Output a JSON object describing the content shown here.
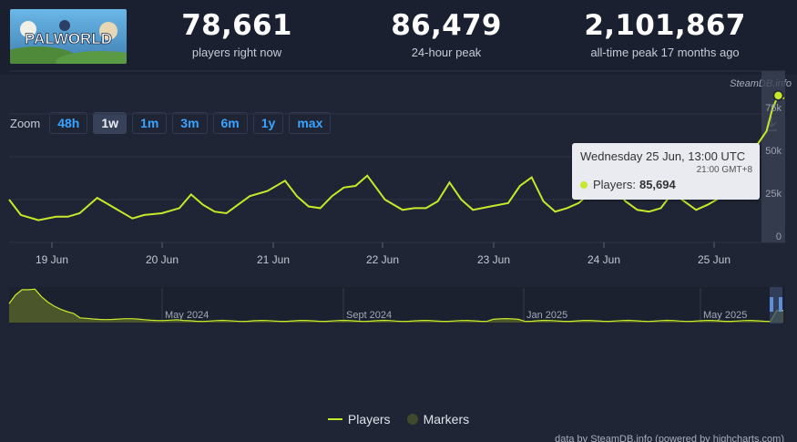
{
  "header": {
    "logo_text": "PALWORLD",
    "stats": [
      {
        "value": "78,661",
        "label": "players right now"
      },
      {
        "value": "86,479",
        "label": "24-hour peak"
      },
      {
        "value": "2,101,867",
        "label": "all-time peak 17 months ago"
      }
    ]
  },
  "credit_top": "SteamDB.info",
  "zoom": {
    "label": "Zoom",
    "buttons": [
      "48h",
      "1w",
      "1m",
      "3m",
      "6m",
      "1y",
      "max"
    ],
    "active": "1w"
  },
  "tooltip": {
    "date": "Wednesday 25 Jun, 13:00 UTC",
    "local_time": "21:00 GMT+8",
    "series": "Players:",
    "value": "85,694"
  },
  "legend": {
    "players": "Players",
    "markers": "Markers"
  },
  "credit_bottom": "data by SteamDB.info (powered by highcharts.com)",
  "colors": {
    "series": "#c7e92a",
    "background": "#1f2535",
    "button_text": "#3aa3ff"
  },
  "chart_data": {
    "type": "line",
    "title": "",
    "x_ticks": [
      "19 Jun",
      "20 Jun",
      "21 Jun",
      "22 Jun",
      "23 Jun",
      "24 Jun",
      "25 Jun"
    ],
    "y_ticks": [
      "0",
      "25k",
      "50k",
      "75k"
    ],
    "ylim": [
      0,
      100000
    ],
    "series": [
      {
        "name": "Players",
        "x_days": [
          0.0,
          0.1,
          0.25,
          0.4,
          0.5,
          0.6,
          0.75,
          0.85,
          0.95,
          1.05,
          1.15,
          1.3,
          1.45,
          1.55,
          1.65,
          1.75,
          1.85,
          1.95,
          2.05,
          2.2,
          2.35,
          2.45,
          2.55,
          2.65,
          2.75,
          2.85,
          2.95,
          3.05,
          3.2,
          3.35,
          3.45,
          3.55,
          3.65,
          3.75,
          3.85,
          3.95,
          4.1,
          4.25,
          4.35,
          4.45,
          4.55,
          4.65,
          4.75,
          4.85,
          4.95,
          5.1,
          5.25,
          5.35,
          5.45,
          5.55,
          5.65,
          5.75,
          5.85,
          5.95,
          6.05,
          6.15,
          6.25,
          6.35,
          6.45,
          6.5,
          6.55,
          6.6
        ],
        "values": [
          25000,
          16000,
          13000,
          15000,
          15000,
          17000,
          26000,
          22000,
          18000,
          14000,
          16000,
          17000,
          20000,
          28000,
          22000,
          18000,
          17000,
          22000,
          27000,
          30000,
          36000,
          27000,
          21000,
          20000,
          27000,
          32000,
          33000,
          39000,
          25000,
          19000,
          20000,
          20000,
          24000,
          35000,
          25000,
          19000,
          21000,
          23000,
          33000,
          38000,
          24000,
          18000,
          20000,
          23000,
          29000,
          36000,
          24000,
          19000,
          18000,
          20000,
          29000,
          24000,
          19000,
          22000,
          26000,
          28000,
          48000,
          55000,
          65000,
          78000,
          85694,
          84000
        ]
      }
    ],
    "navigator": {
      "labels": [
        "May 2024",
        "Sept 2024",
        "Jan 2025",
        "May 2025"
      ]
    }
  }
}
